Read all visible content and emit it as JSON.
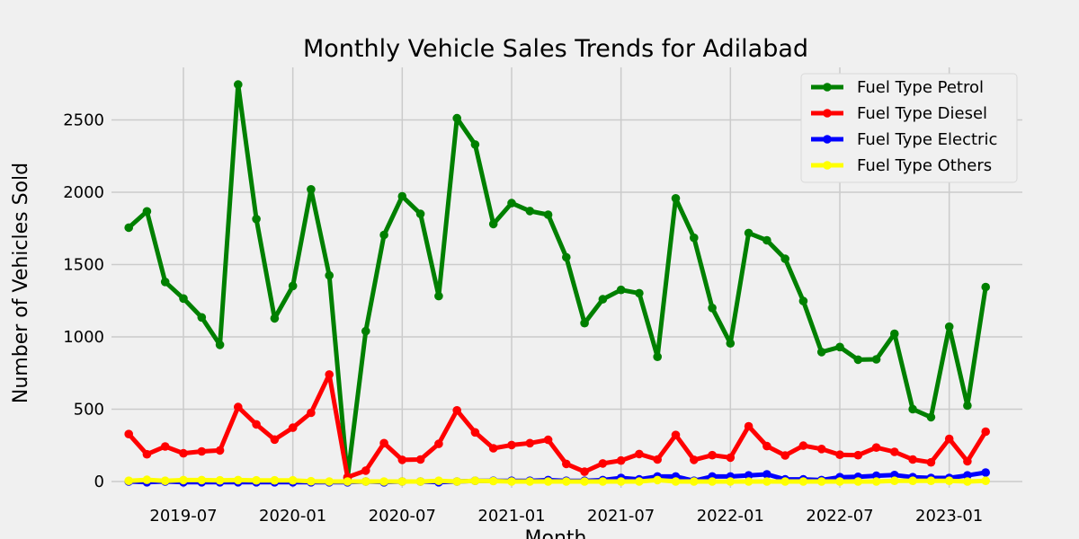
{
  "chart_data": {
    "type": "line",
    "title": "Monthly Vehicle Sales Trends for Adilabad",
    "xlabel": "Month",
    "ylabel": "Number of Vehicles Sold",
    "ylim": [
      0,
      2800
    ],
    "y_ticks": [
      "0",
      "500",
      "1000",
      "1500",
      "2000",
      "2500"
    ],
    "x_ticks": [
      "2019-07",
      "2020-01",
      "2020-07",
      "2021-01",
      "2021-07",
      "2022-01",
      "2022-07",
      "2023-01"
    ],
    "grid": true,
    "legend_position": "top-right",
    "x": [
      "2019-04",
      "2019-05",
      "2019-06",
      "2019-07",
      "2019-08",
      "2019-09",
      "2019-10",
      "2019-11",
      "2019-12",
      "2020-01",
      "2020-02",
      "2020-03",
      "2020-04",
      "2020-05",
      "2020-06",
      "2020-07",
      "2020-08",
      "2020-09",
      "2020-10",
      "2020-11",
      "2020-12",
      "2021-01",
      "2021-02",
      "2021-03",
      "2021-04",
      "2021-05",
      "2021-06",
      "2021-07",
      "2021-08",
      "2021-09",
      "2021-10",
      "2021-11",
      "2021-12",
      "2022-01",
      "2022-02",
      "2022-03",
      "2022-04",
      "2022-05",
      "2022-06",
      "2022-07",
      "2022-08",
      "2022-09",
      "2022-10",
      "2022-11",
      "2022-12",
      "2023-01",
      "2023-02",
      "2023-03"
    ],
    "series": [
      {
        "name": "Fuel Type Petrol",
        "color": "#008000",
        "values": [
          1755,
          1868,
          1380,
          1265,
          1135,
          945,
          2745,
          1815,
          1128,
          1352,
          2020,
          1425,
          25,
          1040,
          1705,
          1972,
          1850,
          1282,
          2512,
          2330,
          1780,
          1925,
          1870,
          1845,
          1550,
          1095,
          1260,
          1325,
          1302,
          862,
          1958,
          1685,
          1200,
          955,
          1718,
          1668,
          1540,
          1248,
          895,
          930,
          842,
          845,
          1022,
          500,
          445,
          1070,
          525,
          1345
        ]
      },
      {
        "name": "Fuel Type Diesel",
        "color": "#ff0000",
        "values": [
          328,
          188,
          242,
          195,
          208,
          215,
          515,
          395,
          290,
          372,
          475,
          740,
          30,
          75,
          265,
          150,
          152,
          260,
          492,
          340,
          230,
          252,
          265,
          288,
          122,
          68,
          125,
          145,
          190,
          152,
          322,
          150,
          182,
          165,
          382,
          245,
          180,
          248,
          225,
          185,
          182,
          235,
          205,
          152,
          132,
          295,
          140,
          345
        ]
      },
      {
        "name": "Fuel Type Electric",
        "color": "#0000ff",
        "values": [
          0,
          -5,
          0,
          -5,
          -5,
          -5,
          -5,
          -5,
          -5,
          -5,
          -5,
          -5,
          -5,
          0,
          -5,
          0,
          0,
          -5,
          0,
          5,
          5,
          5,
          5,
          10,
          5,
          5,
          10,
          25,
          15,
          35,
          35,
          5,
          35,
          35,
          42,
          50,
          15,
          15,
          10,
          30,
          32,
          40,
          45,
          30,
          25,
          25,
          42,
          62
        ]
      },
      {
        "name": "Fuel Type Others",
        "color": "#ffff00",
        "values": [
          5,
          12,
          5,
          10,
          10,
          8,
          10,
          8,
          8,
          8,
          2,
          0,
          0,
          0,
          0,
          0,
          0,
          5,
          0,
          5,
          3,
          0,
          0,
          0,
          0,
          0,
          0,
          0,
          0,
          10,
          0,
          0,
          0,
          0,
          0,
          0,
          0,
          0,
          0,
          0,
          0,
          0,
          5,
          5,
          5,
          5,
          0,
          5
        ]
      }
    ]
  }
}
